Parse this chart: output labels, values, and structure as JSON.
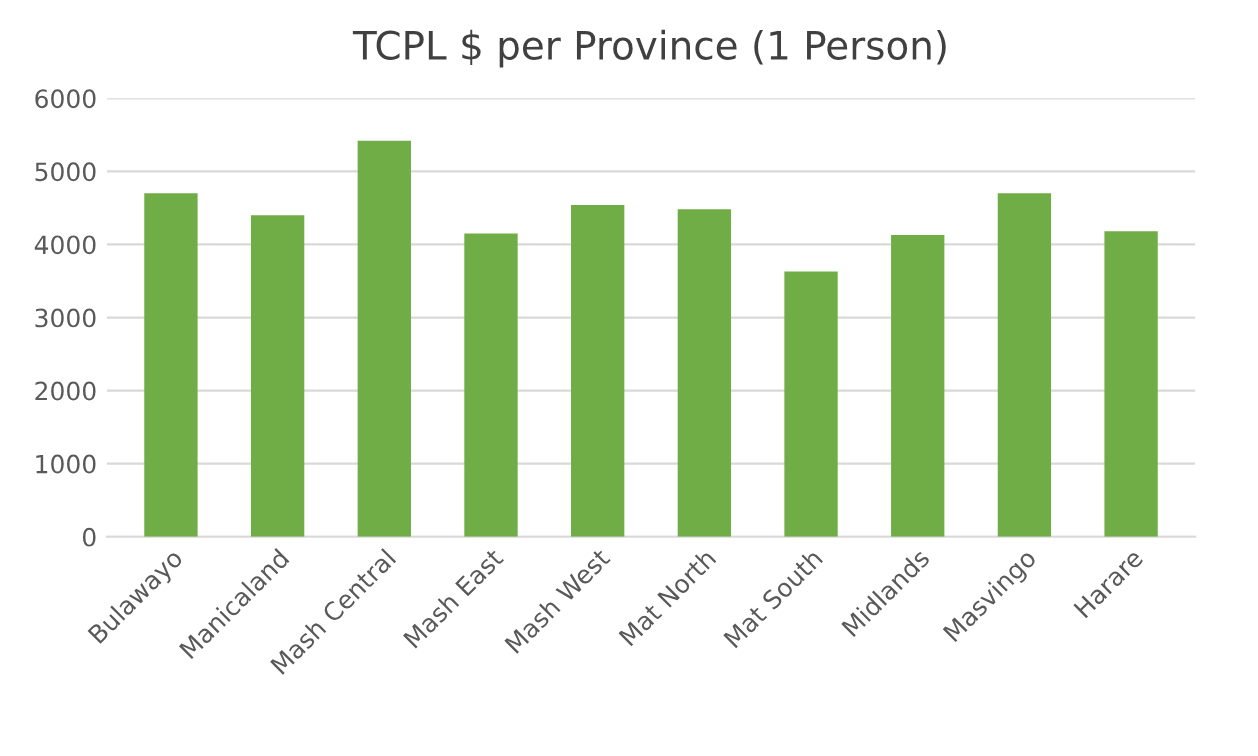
{
  "chart_data": {
    "type": "bar",
    "title": "TCPL $ per Province (1 Person)",
    "categories": [
      "Bulawayo",
      "Manicaland",
      "Mash Central",
      "Mash East",
      "Mash West",
      "Mat North",
      "Mat South",
      "Midlands",
      "Masvingo",
      "Harare"
    ],
    "values": [
      4700,
      4400,
      5420,
      4150,
      4540,
      4480,
      3630,
      4130,
      4700,
      4180
    ],
    "color": "#70ad47",
    "ylim": [
      0,
      6000
    ],
    "yticks": [
      0,
      1000,
      2000,
      3000,
      4000,
      5000,
      6000
    ],
    "grid": "y",
    "legend": false
  }
}
